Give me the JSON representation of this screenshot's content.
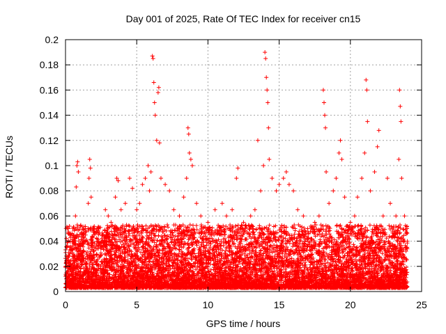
{
  "chart_data": {
    "type": "scatter",
    "title": "Day 001 of 2025, Rate Of TEC Index for receiver cn15",
    "xlabel": "GPS time / hours",
    "ylabel": "ROTI / TECUs",
    "xlim": [
      0,
      25
    ],
    "ylim": [
      0,
      0.2
    ],
    "xticks": [
      "0",
      "5",
      "10",
      "15",
      "20",
      "25"
    ],
    "yticks": [
      "0",
      "0.02",
      "0.04",
      "0.06",
      "0.08",
      "0.1",
      "0.12",
      "0.14",
      "0.16",
      "0.18",
      "0.2"
    ],
    "grid": true,
    "marker": "+",
    "color": "#ff0000",
    "series": [
      {
        "name": "ROTI",
        "points": [
          [
            0.1,
            0.035
          ],
          [
            0.2,
            0.05
          ],
          [
            0.3,
            0.045
          ],
          [
            0.5,
            0.028
          ],
          [
            0.6,
            0.04
          ],
          [
            0.7,
            0.06
          ],
          [
            0.75,
            0.083
          ],
          [
            0.8,
            0.1
          ],
          [
            0.85,
            0.103
          ],
          [
            0.9,
            0.095
          ],
          [
            1.0,
            0.03
          ],
          [
            1.2,
            0.045
          ],
          [
            1.4,
            0.05
          ],
          [
            1.6,
            0.07
          ],
          [
            1.65,
            0.09
          ],
          [
            1.7,
            0.105
          ],
          [
            1.75,
            0.098
          ],
          [
            1.8,
            0.075
          ],
          [
            2.0,
            0.035
          ],
          [
            2.3,
            0.05
          ],
          [
            2.6,
            0.045
          ],
          [
            2.8,
            0.065
          ],
          [
            3.0,
            0.06
          ],
          [
            3.2,
            0.055
          ],
          [
            3.5,
            0.075
          ],
          [
            3.6,
            0.09
          ],
          [
            3.7,
            0.088
          ],
          [
            3.9,
            0.065
          ],
          [
            4.2,
            0.07
          ],
          [
            4.5,
            0.09
          ],
          [
            4.7,
            0.082
          ],
          [
            5.0,
            0.065
          ],
          [
            5.2,
            0.07
          ],
          [
            5.4,
            0.085
          ],
          [
            5.6,
            0.09
          ],
          [
            5.8,
            0.1
          ],
          [
            5.9,
            0.08
          ],
          [
            6.0,
            0.095
          ],
          [
            6.1,
            0.187
          ],
          [
            6.15,
            0.185
          ],
          [
            6.2,
            0.166
          ],
          [
            6.25,
            0.15
          ],
          [
            6.3,
            0.14
          ],
          [
            6.4,
            0.12
          ],
          [
            6.5,
            0.158
          ],
          [
            6.55,
            0.162
          ],
          [
            6.6,
            0.118
          ],
          [
            6.7,
            0.09
          ],
          [
            7.0,
            0.085
          ],
          [
            7.3,
            0.08
          ],
          [
            7.6,
            0.065
          ],
          [
            8.0,
            0.06
          ],
          [
            8.3,
            0.075
          ],
          [
            8.5,
            0.09
          ],
          [
            8.6,
            0.13
          ],
          [
            8.65,
            0.125
          ],
          [
            8.7,
            0.11
          ],
          [
            8.8,
            0.105
          ],
          [
            8.9,
            0.1
          ],
          [
            9.2,
            0.07
          ],
          [
            9.5,
            0.06
          ],
          [
            10.0,
            0.055
          ],
          [
            10.5,
            0.065
          ],
          [
            11.0,
            0.07
          ],
          [
            11.3,
            0.06
          ],
          [
            11.7,
            0.065
          ],
          [
            12.0,
            0.09
          ],
          [
            12.1,
            0.098
          ],
          [
            12.5,
            0.055
          ],
          [
            13.0,
            0.06
          ],
          [
            13.3,
            0.065
          ],
          [
            13.5,
            0.12
          ],
          [
            13.7,
            0.08
          ],
          [
            13.9,
            0.1
          ],
          [
            14.0,
            0.19
          ],
          [
            14.05,
            0.185
          ],
          [
            14.1,
            0.17
          ],
          [
            14.15,
            0.16
          ],
          [
            14.2,
            0.15
          ],
          [
            14.25,
            0.13
          ],
          [
            14.3,
            0.105
          ],
          [
            14.5,
            0.09
          ],
          [
            14.8,
            0.08
          ],
          [
            15.0,
            0.085
          ],
          [
            15.3,
            0.09
          ],
          [
            15.5,
            0.095
          ],
          [
            15.7,
            0.085
          ],
          [
            16.0,
            0.08
          ],
          [
            16.3,
            0.065
          ],
          [
            16.7,
            0.06
          ],
          [
            17.0,
            0.05
          ],
          [
            17.5,
            0.055
          ],
          [
            17.8,
            0.06
          ],
          [
            18.1,
            0.16
          ],
          [
            18.15,
            0.15
          ],
          [
            18.2,
            0.14
          ],
          [
            18.25,
            0.13
          ],
          [
            18.3,
            0.095
          ],
          [
            18.5,
            0.07
          ],
          [
            18.8,
            0.08
          ],
          [
            19.0,
            0.09
          ],
          [
            19.2,
            0.11
          ],
          [
            19.3,
            0.12
          ],
          [
            19.4,
            0.105
          ],
          [
            19.6,
            0.075
          ],
          [
            20.0,
            0.055
          ],
          [
            20.3,
            0.06
          ],
          [
            20.5,
            0.075
          ],
          [
            20.8,
            0.09
          ],
          [
            21.0,
            0.11
          ],
          [
            21.1,
            0.168
          ],
          [
            21.15,
            0.16
          ],
          [
            21.2,
            0.135
          ],
          [
            21.4,
            0.08
          ],
          [
            21.7,
            0.095
          ],
          [
            21.9,
            0.115
          ],
          [
            22.0,
            0.128
          ],
          [
            22.3,
            0.06
          ],
          [
            22.6,
            0.09
          ],
          [
            22.8,
            0.07
          ],
          [
            23.2,
            0.06
          ],
          [
            23.4,
            0.105
          ],
          [
            23.45,
            0.16
          ],
          [
            23.5,
            0.147
          ],
          [
            23.55,
            0.135
          ],
          [
            23.6,
            0.09
          ],
          [
            23.8,
            0.06
          ],
          [
            24.0,
            0.04
          ]
        ]
      }
    ]
  }
}
